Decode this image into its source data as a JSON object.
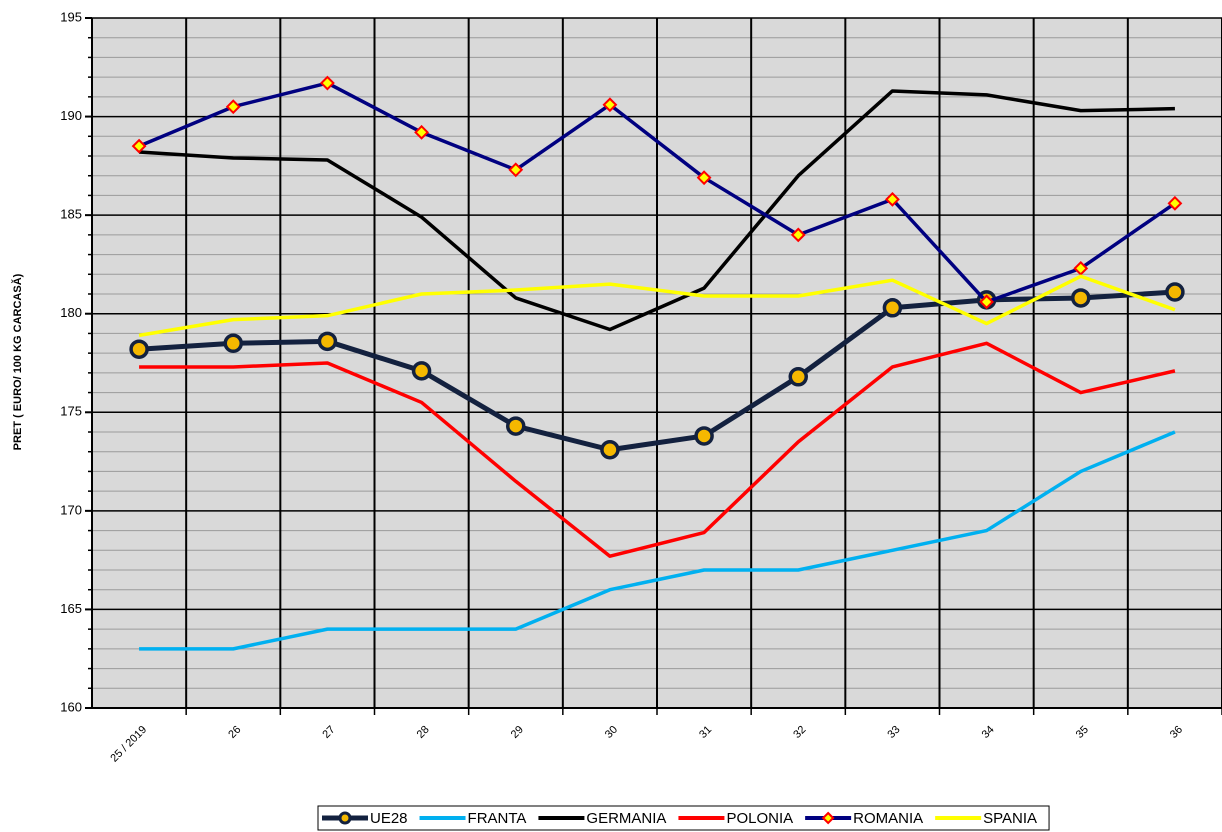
{
  "chart_data": {
    "type": "line",
    "y_label": "PRET ( EURO/ 100 KG CARCASĂ)",
    "categories": [
      "25 / 2019",
      "26",
      "27",
      "28",
      "29",
      "30",
      "31",
      "32",
      "33",
      "34",
      "35",
      "36"
    ],
    "series": [
      {
        "name": "UE28",
        "color": "#13213f",
        "marker": "circle",
        "marker_color": "#f5b800",
        "values": [
          178.2,
          178.5,
          178.6,
          177.1,
          174.3,
          173.1,
          173.8,
          176.8,
          180.3,
          180.7,
          180.8,
          181.1
        ]
      },
      {
        "name": "FRANTA",
        "color": "#00b0f0",
        "values": [
          163,
          163,
          164,
          164,
          164,
          166,
          167,
          167,
          168,
          169,
          172,
          174
        ]
      },
      {
        "name": "GERMANIA",
        "color": "#000000",
        "values": [
          188.2,
          187.9,
          187.8,
          184.9,
          180.8,
          179.2,
          181.3,
          187.0,
          191.3,
          191.1,
          190.3,
          190.4
        ]
      },
      {
        "name": "POLONIA",
        "color": "#ff0000",
        "values": [
          177.3,
          177.3,
          177.5,
          175.5,
          171.5,
          167.7,
          168.9,
          173.5,
          177.3,
          178.5,
          176.0,
          177.1
        ]
      },
      {
        "name": "ROMANIA",
        "color": "#000080",
        "marker": "diamond",
        "marker_color": "#ffff00",
        "values": [
          188.5,
          190.5,
          191.7,
          189.2,
          187.3,
          190.6,
          186.9,
          184.0,
          185.8,
          180.6,
          182.3,
          185.6
        ]
      },
      {
        "name": "SPANIA",
        "color": "#ffff00",
        "values": [
          178.9,
          179.7,
          179.9,
          181.0,
          181.2,
          181.5,
          180.9,
          180.9,
          181.7,
          179.5,
          181.9,
          180.2
        ]
      }
    ],
    "ylim": [
      160,
      195
    ],
    "yticks": [
      160,
      165,
      170,
      175,
      180,
      185,
      190,
      195
    ],
    "grid": true,
    "legend": "bottom"
  }
}
